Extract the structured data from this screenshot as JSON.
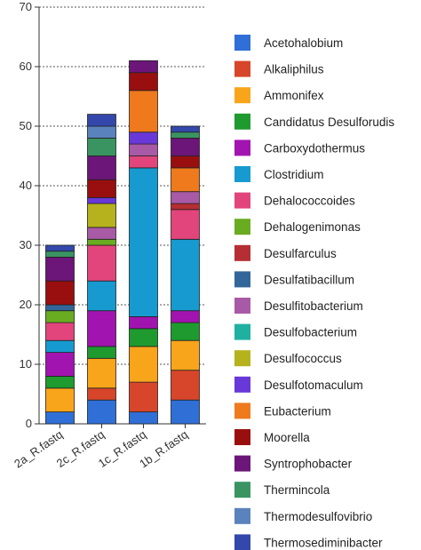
{
  "chart_data": {
    "type": "bar",
    "stacked": true,
    "categories": [
      "2a_R.fastq",
      "2c_R.fastq",
      "1c_R.fastq",
      "1b_R.fastq"
    ],
    "ylim": [
      0,
      70
    ],
    "yticks": [
      "0",
      "10",
      "20",
      "30",
      "40",
      "50",
      "60",
      "70"
    ],
    "grid": "horizontal dotted",
    "legend_position": "right",
    "series": [
      {
        "name": "Acetohalobium",
        "color": "#2f6fd6",
        "values": [
          2,
          4,
          2,
          4
        ]
      },
      {
        "name": "Alkaliphilus",
        "color": "#d7462a",
        "values": [
          0,
          2,
          5,
          5
        ]
      },
      {
        "name": "Ammonifex",
        "color": "#f9a51b",
        "values": [
          4,
          5,
          6,
          5
        ]
      },
      {
        "name": "Candidatus Desulforudis",
        "color": "#1f9a2f",
        "values": [
          2,
          2,
          3,
          3
        ]
      },
      {
        "name": "Carboxydothermus",
        "color": "#a214b0",
        "values": [
          4,
          6,
          2,
          2
        ]
      },
      {
        "name": "Clostridium",
        "color": "#179ad0",
        "values": [
          2,
          5,
          25,
          12
        ]
      },
      {
        "name": "Dehalococcoides",
        "color": "#e2457b",
        "values": [
          3,
          6,
          2,
          5
        ]
      },
      {
        "name": "Dehalogenimonas",
        "color": "#6aac21",
        "values": [
          2,
          1,
          0,
          0
        ]
      },
      {
        "name": "Desulfarculus",
        "color": "#b52e33",
        "values": [
          0,
          0,
          0,
          1
        ]
      },
      {
        "name": "Desulfatibacillum",
        "color": "#336699",
        "values": [
          1,
          0,
          0,
          0
        ]
      },
      {
        "name": "Desulfitobacterium",
        "color": "#a95aa6",
        "values": [
          0,
          2,
          2,
          2
        ]
      },
      {
        "name": "Desulfobacterium",
        "color": "#20b0a0",
        "values": [
          0,
          0,
          0,
          0
        ]
      },
      {
        "name": "Desulfococcus",
        "color": "#b5b21d",
        "values": [
          0,
          4,
          0,
          0
        ]
      },
      {
        "name": "Desulfotomaculum",
        "color": "#6938d8",
        "values": [
          0,
          1,
          2,
          0
        ]
      },
      {
        "name": "Eubacterium",
        "color": "#ee7a1d",
        "values": [
          0,
          0,
          7,
          4
        ]
      },
      {
        "name": "Moorella",
        "color": "#990f0f",
        "values": [
          4,
          3,
          3,
          2
        ]
      },
      {
        "name": "Syntrophobacter",
        "color": "#6b1678",
        "values": [
          4,
          4,
          2,
          3
        ]
      },
      {
        "name": "Thermincola",
        "color": "#3a9462",
        "values": [
          1,
          3,
          0,
          1
        ]
      },
      {
        "name": "Thermodesulfovibrio",
        "color": "#5a82bd",
        "values": [
          0,
          2,
          0,
          0
        ]
      },
      {
        "name": "Thermosediminibacter",
        "color": "#3348aa",
        "values": [
          1,
          2,
          0,
          1
        ]
      }
    ]
  }
}
